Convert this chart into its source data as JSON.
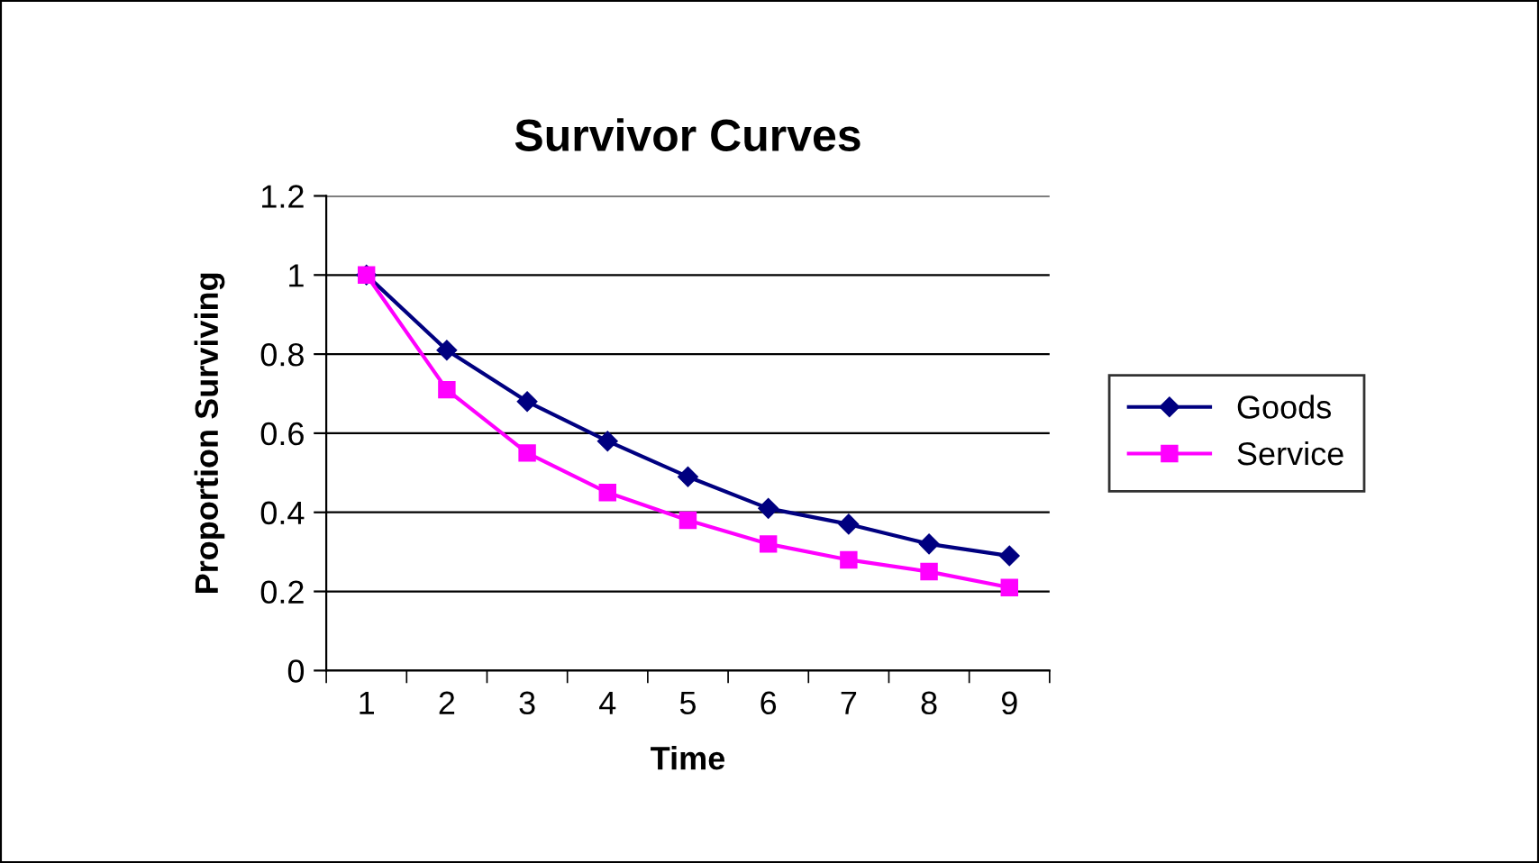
{
  "chart_data": {
    "type": "line",
    "title": "Survivor Curves",
    "xlabel": "Time",
    "ylabel": "Proportion Surviving",
    "categories": [
      "1",
      "2",
      "3",
      "4",
      "5",
      "6",
      "7",
      "8",
      "9"
    ],
    "series": [
      {
        "name": "Goods",
        "color": "#000080",
        "marker": "diamond",
        "values": [
          1,
          0.81,
          0.68,
          0.58,
          0.49,
          0.41,
          0.37,
          0.32,
          0.29
        ]
      },
      {
        "name": "Service",
        "color": "#ff00ff",
        "marker": "square",
        "values": [
          1,
          0.71,
          0.55,
          0.45,
          0.38,
          0.32,
          0.28,
          0.25,
          0.21
        ]
      }
    ],
    "ylim": [
      0,
      1.2
    ],
    "yticks": [
      0,
      0.2,
      0.4,
      0.6,
      0.8,
      1,
      1.2
    ],
    "grid": "y",
    "legend": "right"
  }
}
